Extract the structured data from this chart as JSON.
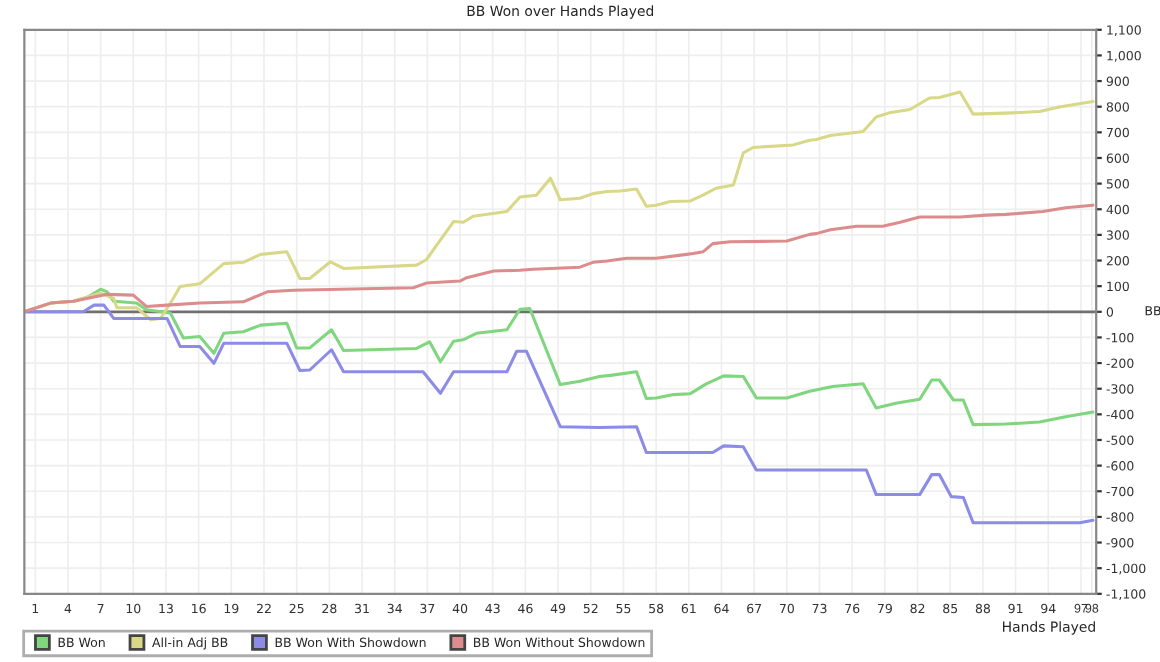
{
  "chart_data": {
    "type": "line",
    "title": "BB Won over Hands Played",
    "xlabel": "Hands Played",
    "ylabel": "BB",
    "xlim": [
      0,
      98.4
    ],
    "xticks": [
      1,
      4,
      7,
      10,
      13,
      16,
      19,
      22,
      25,
      28,
      31,
      34,
      37,
      40,
      43,
      46,
      49,
      52,
      55,
      58,
      61,
      64,
      67,
      70,
      73,
      76,
      79,
      82,
      85,
      88,
      91,
      94,
      97,
      98
    ],
    "ylim": [
      -1100,
      1100
    ],
    "yticks": [
      {
        "value": -1100,
        "label": "-1,100"
      },
      {
        "value": -1000,
        "label": "-1,000"
      },
      -900,
      -800,
      -700,
      -600,
      -500,
      -400,
      -300,
      -200,
      -100,
      0,
      100,
      200,
      300,
      400,
      500,
      600,
      700,
      800,
      900,
      {
        "value": 1000,
        "label": "1,000"
      },
      {
        "value": 1100,
        "label": "1,100"
      }
    ],
    "grid": true,
    "legend": "bottom",
    "ref_lines": [
      {
        "axis": "y",
        "value": 0,
        "color": "#707070"
      }
    ],
    "series": [
      {
        "name": "BB Won",
        "color": "#7fd67f",
        "x": [
          0,
          2.4,
          4.5,
          5.7,
          7.0,
          7.6,
          8.2,
          10.3,
          11.2,
          13.4,
          14.6,
          16.1,
          17.4,
          18.3,
          20.1,
          21.7,
          24.1,
          25.0,
          26.2,
          28.2,
          29.3,
          36.0,
          37.2,
          38.2,
          39.4,
          40.3,
          41.5,
          44.3,
          45.5,
          46.4,
          49.2,
          51.0,
          52.8,
          53.8,
          56.2,
          57.1,
          58.0,
          59.6,
          61.1,
          62.6,
          64.2,
          66.0,
          67.2,
          70.0,
          72.1,
          74.2,
          77.0,
          78.2,
          80.0,
          82.2,
          83.3,
          84.0,
          85.3,
          86.2,
          87.1,
          90.1,
          93.2,
          95.6,
          98.1
        ],
        "values": [
          0,
          34,
          41,
          55,
          88,
          78,
          41,
          34,
          8,
          -5,
          -102,
          -96,
          -162,
          -84,
          -78,
          -52,
          -45,
          -141,
          -141,
          -70,
          -151,
          -143,
          -117,
          -195,
          -115,
          -109,
          -84,
          -70,
          10,
          13,
          -284,
          -271,
          -252,
          -248,
          -234,
          -338,
          -336,
          -323,
          -320,
          -281,
          -250,
          -252,
          -336,
          -336,
          -310,
          -291,
          -281,
          -375,
          -357,
          -341,
          -266,
          -266,
          -344,
          -344,
          -440,
          -438,
          -430,
          -409,
          -391
        ]
      },
      {
        "name": "All-in Adj BB",
        "color": "#d8d888",
        "x": [
          0,
          2.4,
          4.5,
          7.0,
          8.2,
          8.5,
          10.3,
          11.6,
          12.5,
          13.6,
          14.3,
          16.1,
          18.3,
          20.1,
          21.7,
          24.1,
          25.3,
          26.2,
          28.1,
          29.3,
          36.0,
          36.9,
          39.4,
          40.3,
          41.2,
          44.3,
          45.5,
          47.0,
          48.3,
          49.2,
          51.0,
          52.2,
          53.5,
          54.7,
          56.2,
          57.1,
          58.0,
          59.3,
          61.1,
          62.3,
          63.5,
          65.1,
          66.0,
          66.9,
          70.6,
          72.1,
          72.7,
          74.0,
          77.0,
          78.2,
          79.4,
          81.3,
          83.1,
          84.0,
          85.9,
          87.1,
          90.7,
          93.2,
          95.0,
          98.1
        ],
        "values": [
          0,
          34,
          41,
          73,
          52,
          16,
          16,
          -31,
          -26,
          47,
          99,
          109,
          188,
          193,
          224,
          234,
          130,
          130,
          195,
          169,
          182,
          203,
          352,
          349,
          373,
          391,
          448,
          455,
          521,
          437,
          443,
          461,
          469,
          471,
          479,
          412,
          416,
          430,
          432,
          455,
          482,
          495,
          620,
          641,
          651,
          669,
          672,
          688,
          703,
          760,
          776,
          789,
          834,
          836,
          857,
          771,
          776,
          781,
          799,
          820
        ]
      },
      {
        "name": "BB Won With Showdown",
        "color": "#8c8ce6",
        "x": [
          0,
          5.4,
          6.4,
          7.3,
          8.2,
          13.1,
          14.3,
          16.1,
          17.4,
          18.3,
          24.1,
          25.3,
          26.2,
          28.2,
          29.3,
          36.6,
          38.2,
          39.4,
          44.3,
          45.2,
          46.1,
          49.2,
          52.8,
          56.2,
          57.1,
          63.2,
          64.2,
          66.0,
          67.2,
          77.3,
          78.2,
          82.2,
          83.3,
          84.0,
          85.1,
          86.2,
          87.1,
          96.9,
          98.1
        ],
        "values": [
          0,
          0,
          26,
          26,
          -26,
          -26,
          -135,
          -135,
          -201,
          -123,
          -123,
          -229,
          -227,
          -148,
          -234,
          -234,
          -318,
          -234,
          -234,
          -154,
          -154,
          -448,
          -451,
          -448,
          -549,
          -549,
          -523,
          -526,
          -617,
          -617,
          -713,
          -713,
          -635,
          -635,
          -721,
          -724,
          -823,
          -823,
          -813
        ]
      },
      {
        "name": "BB Won Without Showdown",
        "color": "#dc8c8c",
        "x": [
          0,
          2.4,
          4.5,
          7.6,
          10.0,
          11.2,
          13.1,
          16.1,
          20.1,
          22.3,
          24.7,
          35.7,
          36.9,
          40.0,
          40.6,
          43.1,
          45.5,
          46.7,
          51.0,
          52.2,
          53.5,
          55.3,
          58.0,
          60.8,
          61.4,
          62.3,
          63.2,
          64.8,
          70.0,
          72.1,
          72.7,
          74.0,
          76.4,
          78.8,
          80.4,
          82.2,
          85.9,
          88.3,
          90.1,
          93.5,
          95.6,
          98.1
        ],
        "values": [
          0,
          34,
          41,
          68,
          65,
          21,
          26,
          34,
          39,
          78,
          84,
          94,
          112,
          120,
          133,
          159,
          162,
          166,
          174,
          193,
          198,
          209,
          209,
          224,
          227,
          234,
          266,
          273,
          276,
          302,
          305,
          320,
          334,
          334,
          349,
          370,
          370,
          377,
          380,
          391,
          406,
          416
        ]
      }
    ]
  }
}
